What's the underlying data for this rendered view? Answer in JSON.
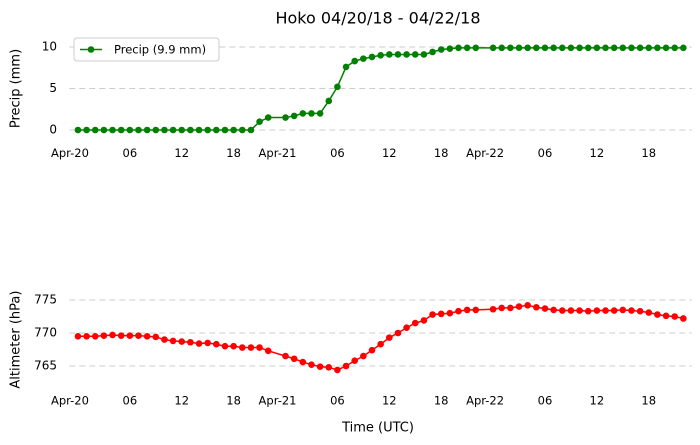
{
  "chart_data": [
    {
      "type": "line",
      "title": "Hoko 04/20/18 - 04/22/18",
      "ylabel": "Precip (mm)",
      "x": [
        0,
        1,
        2,
        3,
        4,
        5,
        6,
        7,
        8,
        9,
        10,
        11,
        12,
        13,
        14,
        15,
        16,
        17,
        18,
        19,
        20,
        21,
        22,
        24,
        25,
        26,
        27,
        28,
        29,
        30,
        31,
        32,
        33,
        34,
        35,
        36,
        37,
        38,
        39,
        40,
        41,
        42,
        43,
        44,
        45,
        46,
        48,
        49,
        50,
        51,
        52,
        53,
        54,
        55,
        56,
        57,
        58,
        59,
        60,
        61,
        62,
        63,
        64,
        65,
        66,
        67,
        68,
        69,
        70
      ],
      "series": [
        {
          "name": "Precip (9.9 mm)",
          "color": "#008000",
          "values": [
            0,
            0,
            0,
            0,
            0,
            0,
            0,
            0,
            0,
            0,
            0,
            0,
            0,
            0,
            0,
            0,
            0,
            0,
            0,
            0,
            0,
            1.0,
            1.5,
            1.5,
            1.7,
            2.0,
            2.0,
            2.0,
            3.5,
            5.2,
            7.6,
            8.3,
            8.6,
            8.8,
            9.0,
            9.1,
            9.1,
            9.1,
            9.1,
            9.1,
            9.4,
            9.7,
            9.8,
            9.9,
            9.9,
            9.9,
            9.9,
            9.9,
            9.9,
            9.9,
            9.9,
            9.9,
            9.9,
            9.9,
            9.9,
            9.9,
            9.9,
            9.9,
            9.9,
            9.9,
            9.9,
            9.9,
            9.9,
            9.9,
            9.9,
            9.9,
            9.9,
            9.9,
            9.9
          ]
        }
      ],
      "xlim": [
        -1,
        71
      ],
      "xticks": [
        {
          "value": 0,
          "label": "Apr-20"
        },
        {
          "value": 6,
          "label": "06"
        },
        {
          "value": 12,
          "label": "12"
        },
        {
          "value": 18,
          "label": "18"
        },
        {
          "value": 24,
          "label": "Apr-21"
        },
        {
          "value": 30,
          "label": "06"
        },
        {
          "value": 36,
          "label": "12"
        },
        {
          "value": 42,
          "label": "18"
        },
        {
          "value": 48,
          "label": "Apr-22"
        },
        {
          "value": 54,
          "label": "06"
        },
        {
          "value": 60,
          "label": "12"
        },
        {
          "value": 66,
          "label": "18"
        }
      ],
      "ylim": [
        -1,
        11
      ],
      "yticks": [
        0,
        5,
        10
      ],
      "grid": true,
      "legend": "upper left"
    },
    {
      "type": "line",
      "ylabel": "Altimeter (hPa)",
      "xlabel": "Time (UTC)",
      "x": [
        0,
        1,
        2,
        3,
        4,
        5,
        6,
        7,
        8,
        9,
        10,
        11,
        12,
        13,
        14,
        15,
        16,
        17,
        18,
        19,
        20,
        21,
        22,
        24,
        25,
        26,
        27,
        28,
        29,
        30,
        31,
        32,
        33,
        34,
        35,
        36,
        37,
        38,
        39,
        40,
        41,
        42,
        43,
        44,
        45,
        46,
        48,
        49,
        50,
        51,
        52,
        53,
        54,
        55,
        56,
        57,
        58,
        59,
        60,
        61,
        62,
        63,
        64,
        65,
        66,
        67,
        68,
        69,
        70
      ],
      "series": [
        {
          "color": "#ff0000",
          "values": [
            769.5,
            769.5,
            769.5,
            769.6,
            769.7,
            769.6,
            769.6,
            769.6,
            769.5,
            769.4,
            769.0,
            768.8,
            768.7,
            768.6,
            768.4,
            768.5,
            768.3,
            768.0,
            768.0,
            767.8,
            767.8,
            767.8,
            767.3,
            766.5,
            766.1,
            765.6,
            765.2,
            764.9,
            764.8,
            764.4,
            765.0,
            765.8,
            766.5,
            767.4,
            768.3,
            769.3,
            770.0,
            770.8,
            771.5,
            771.9,
            772.8,
            772.9,
            773.0,
            773.3,
            773.5,
            773.5,
            773.6,
            773.8,
            773.8,
            774.0,
            774.2,
            773.9,
            773.7,
            773.5,
            773.4,
            773.4,
            773.4,
            773.3,
            773.4,
            773.4,
            773.4,
            773.5,
            773.4,
            773.3,
            773.1,
            772.8,
            772.6,
            772.5,
            772.2
          ]
        }
      ],
      "xlim": [
        -1,
        71
      ],
      "xticks": [
        {
          "value": 0,
          "label": "Apr-20"
        },
        {
          "value": 6,
          "label": "06"
        },
        {
          "value": 12,
          "label": "12"
        },
        {
          "value": 18,
          "label": "18"
        },
        {
          "value": 24,
          "label": "Apr-21"
        },
        {
          "value": 30,
          "label": "06"
        },
        {
          "value": 36,
          "label": "12"
        },
        {
          "value": 42,
          "label": "18"
        },
        {
          "value": 48,
          "label": "Apr-22"
        },
        {
          "value": 54,
          "label": "06"
        },
        {
          "value": 60,
          "label": "12"
        },
        {
          "value": 66,
          "label": "18"
        }
      ],
      "ylim": [
        762,
        776
      ],
      "yticks": [
        765,
        770,
        775
      ],
      "grid": true
    }
  ]
}
